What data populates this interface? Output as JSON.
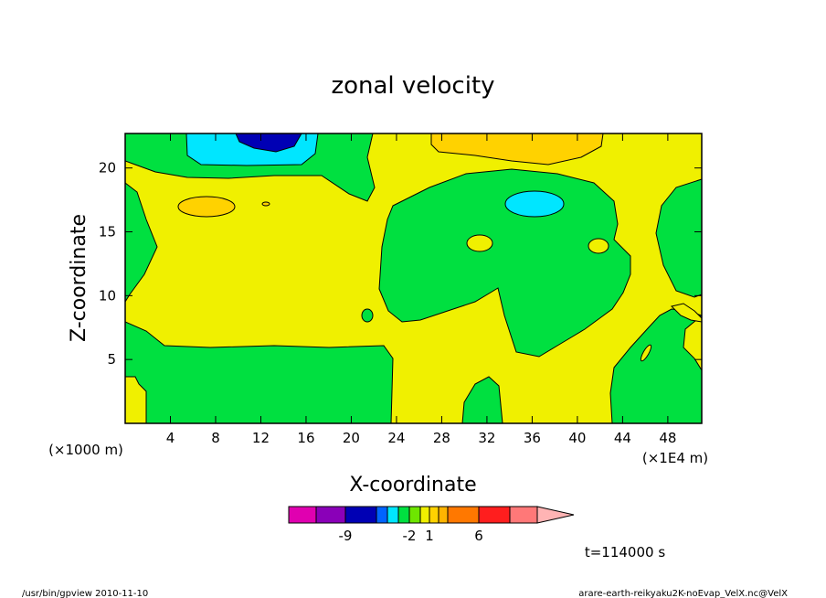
{
  "chart_data": {
    "type": "heatmap",
    "title": "zonal velocity",
    "xlabel": "X-coordinate",
    "ylabel": "Z-coordinate",
    "x_unit_label": "(×1000 m)",
    "x_scale_label": "(×1E4 m)",
    "x_ticks": [
      "4",
      "8",
      "12",
      "16",
      "20",
      "24",
      "28",
      "32",
      "36",
      "40",
      "44",
      "48"
    ],
    "x_tick_values": [
      4,
      8,
      12,
      16,
      20,
      24,
      28,
      32,
      36,
      40,
      44,
      48
    ],
    "y_ticks": [
      "5",
      "10",
      "15",
      "20"
    ],
    "y_tick_values": [
      5,
      10,
      15,
      20
    ],
    "xlim": [
      0,
      51
    ],
    "ylim": [
      0,
      22.7
    ],
    "colorbar": {
      "colors": [
        "#e000b0",
        "#8a00b8",
        "#0000b4",
        "#0064ff",
        "#00e6ff",
        "#00e040",
        "#6ee600",
        "#f0f000",
        "#ffd200",
        "#ffb400",
        "#ff7800",
        "#ff1e1e",
        "#ff7878",
        "#ffb4b4"
      ],
      "labels": [
        "-9",
        "-2",
        "1",
        "6"
      ],
      "label_box_index": [
        1,
        5,
        7,
        10
      ]
    },
    "time_label": "t=114000 s"
  },
  "footer": {
    "left": "/usr/bin/gpview   2010-11-10",
    "right": "arare-earth-reikyaku2K-noEvap_VelX.nc@VelX"
  },
  "colors": {
    "background_field": "#f0f000",
    "green": "#00e040",
    "cyan": "#00e6ff",
    "blue": "#0000b4",
    "orange": "#ffd200",
    "light_orange": "#ffb400"
  }
}
